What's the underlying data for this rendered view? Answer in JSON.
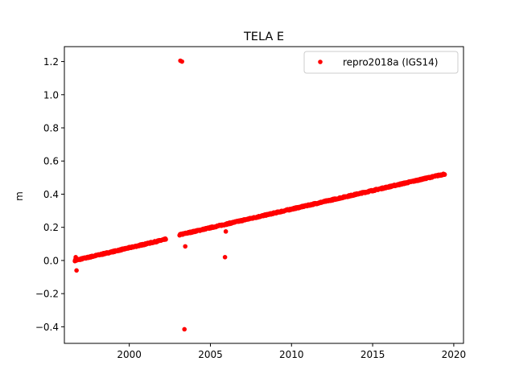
{
  "chart_data": {
    "type": "scatter",
    "title": "TELA E",
    "xlabel": "",
    "ylabel": "m",
    "xlim": [
      1996.0,
      2020.6
    ],
    "ylim": [
      -0.5,
      1.29
    ],
    "xticks": [
      2000,
      2005,
      2010,
      2015,
      2020
    ],
    "yticks": [
      -0.4,
      -0.2,
      0.0,
      0.2,
      0.4,
      0.6,
      0.8,
      1.0,
      1.2
    ],
    "xtick_labels": [
      "2000",
      "2005",
      "2010",
      "2015",
      "2020"
    ],
    "ytick_labels": [
      "−0.4",
      "−0.2",
      "0.0",
      "0.2",
      "0.4",
      "0.6",
      "0.8",
      "1.0",
      "1.2"
    ],
    "grid": false,
    "legend": {
      "position": "top-right",
      "entries": [
        "repro2018a (IGS14)"
      ]
    },
    "series": [
      {
        "name": "repro2018a (IGS14)",
        "color": "#ff0000",
        "marker": "circle",
        "segments": [
          {
            "x_start": 1996.65,
            "x_end": 2002.25,
            "y_start": 0.0,
            "y_end": 0.128,
            "step": 0.02,
            "jitter": 0.004
          },
          {
            "x_start": 2003.1,
            "x_end": 2019.45,
            "y_start": 0.155,
            "y_end": 0.522,
            "step": 0.02,
            "jitter": 0.004
          }
        ],
        "points": [
          {
            "x": 1996.7,
            "y": 0.02
          },
          {
            "x": 1996.72,
            "y": 0.01
          },
          {
            "x": 1996.75,
            "y": -0.06
          },
          {
            "x": 2003.15,
            "y": 1.205
          },
          {
            "x": 2003.25,
            "y": 1.2
          },
          {
            "x": 2003.45,
            "y": 0.085
          },
          {
            "x": 2003.4,
            "y": -0.415
          },
          {
            "x": 2005.9,
            "y": 0.02
          },
          {
            "x": 2005.95,
            "y": 0.175
          }
        ]
      }
    ]
  }
}
